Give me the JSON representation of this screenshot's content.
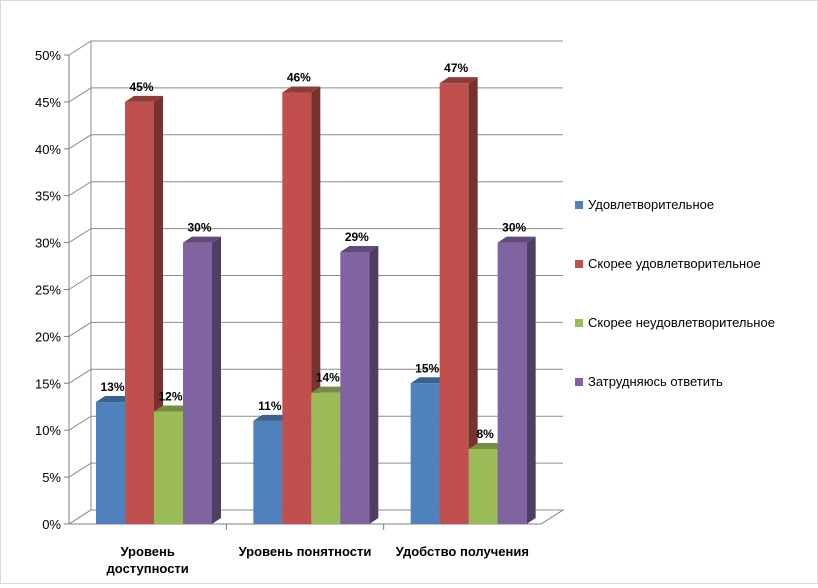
{
  "chart_data": {
    "type": "bar",
    "title": "",
    "xlabel": "",
    "ylabel": "",
    "ylim": [
      0,
      50
    ],
    "y_tick_labels": [
      "0%",
      "5%",
      "10%",
      "15%",
      "20%",
      "25%",
      "30%",
      "35%",
      "40%",
      "45%",
      "50%"
    ],
    "categories": [
      [
        "Уровень",
        "доступности"
      ],
      [
        "Уровень понятности"
      ],
      [
        "Удобство получения"
      ]
    ],
    "series": [
      {
        "name": "Удовлетворительное",
        "values": [
          13,
          11,
          15
        ],
        "labels": [
          "13%",
          "11%",
          "15%"
        ],
        "color": "#4f81bd"
      },
      {
        "name": "Скорее удовлетворительное",
        "values": [
          45,
          46,
          47
        ],
        "labels": [
          "45%",
          "46%",
          "47%"
        ],
        "color": "#c0504d"
      },
      {
        "name": "Скорее неудовлетворительное",
        "values": [
          12,
          14,
          8
        ],
        "labels": [
          "12%",
          "14%",
          "8%"
        ],
        "color": "#9bbb59"
      },
      {
        "name": "Затрудняюсь ответить",
        "values": [
          30,
          29,
          30
        ],
        "labels": [
          "30%",
          "29%",
          "30%"
        ],
        "color": "#8064a2"
      }
    ],
    "grid": true,
    "legend_position": "right",
    "style": "3d-clustered-column"
  }
}
